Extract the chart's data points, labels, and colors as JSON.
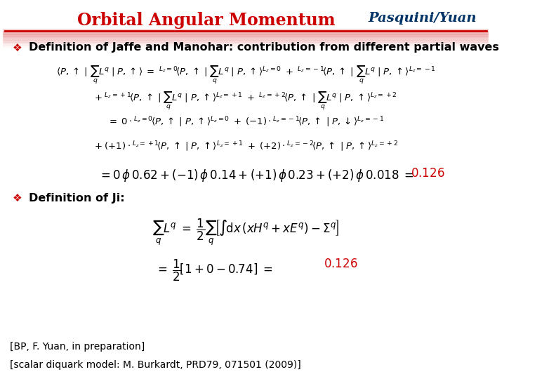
{
  "title": "Orbital Angular Momentum",
  "author": "Pasquini/Yuan",
  "bg_color": "#ffffff",
  "title_color": "#cc0000",
  "author_color": "#003366",
  "bullet_color": "#cc0000",
  "text_color": "#000000",
  "result_color": "#cc0000",
  "line_color": "#cc0000",
  "bullet1": "Definition of Jaffe and Manohar: contribution from different partial waves",
  "bullet2": "Definition of Ji:",
  "footer1": "[BP, F. Yuan, in preparation]",
  "footer2": "[scalar diquark model: M. Burkardt, PRD79, 071501 (2009)]"
}
